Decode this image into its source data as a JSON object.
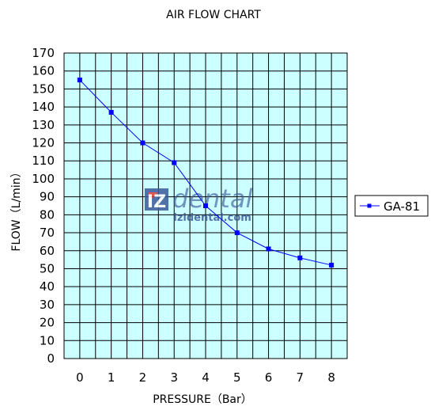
{
  "chart_data": {
    "type": "line",
    "title": "AIR FLOW CHART",
    "xlabel": "PRESSURE（Bar）",
    "ylabel": "FLOW（L/min）",
    "x": [
      0,
      1,
      2,
      3,
      4,
      5,
      6,
      7,
      8
    ],
    "x_ticks": [
      "0",
      "1",
      "2",
      "3",
      "4",
      "5",
      "6",
      "7",
      "8"
    ],
    "y_ticks": [
      "0",
      "10",
      "20",
      "30",
      "40",
      "50",
      "60",
      "70",
      "80",
      "90",
      "100",
      "110",
      "120",
      "130",
      "140",
      "150",
      "160",
      "170"
    ],
    "xlim": [
      -0.5,
      8.5
    ],
    "ylim": [
      0,
      170
    ],
    "grid": true,
    "legend_position": "right",
    "plot_background": "#ccffff",
    "series": [
      {
        "name": "GA-81",
        "color": "#0000ff",
        "values": [
          155,
          137,
          120,
          109,
          85,
          70,
          61,
          56,
          52
        ]
      }
    ]
  },
  "watermark": {
    "logo_letters": "IZ",
    "brand_text": "dental",
    "url_text": "Izidental.com"
  }
}
